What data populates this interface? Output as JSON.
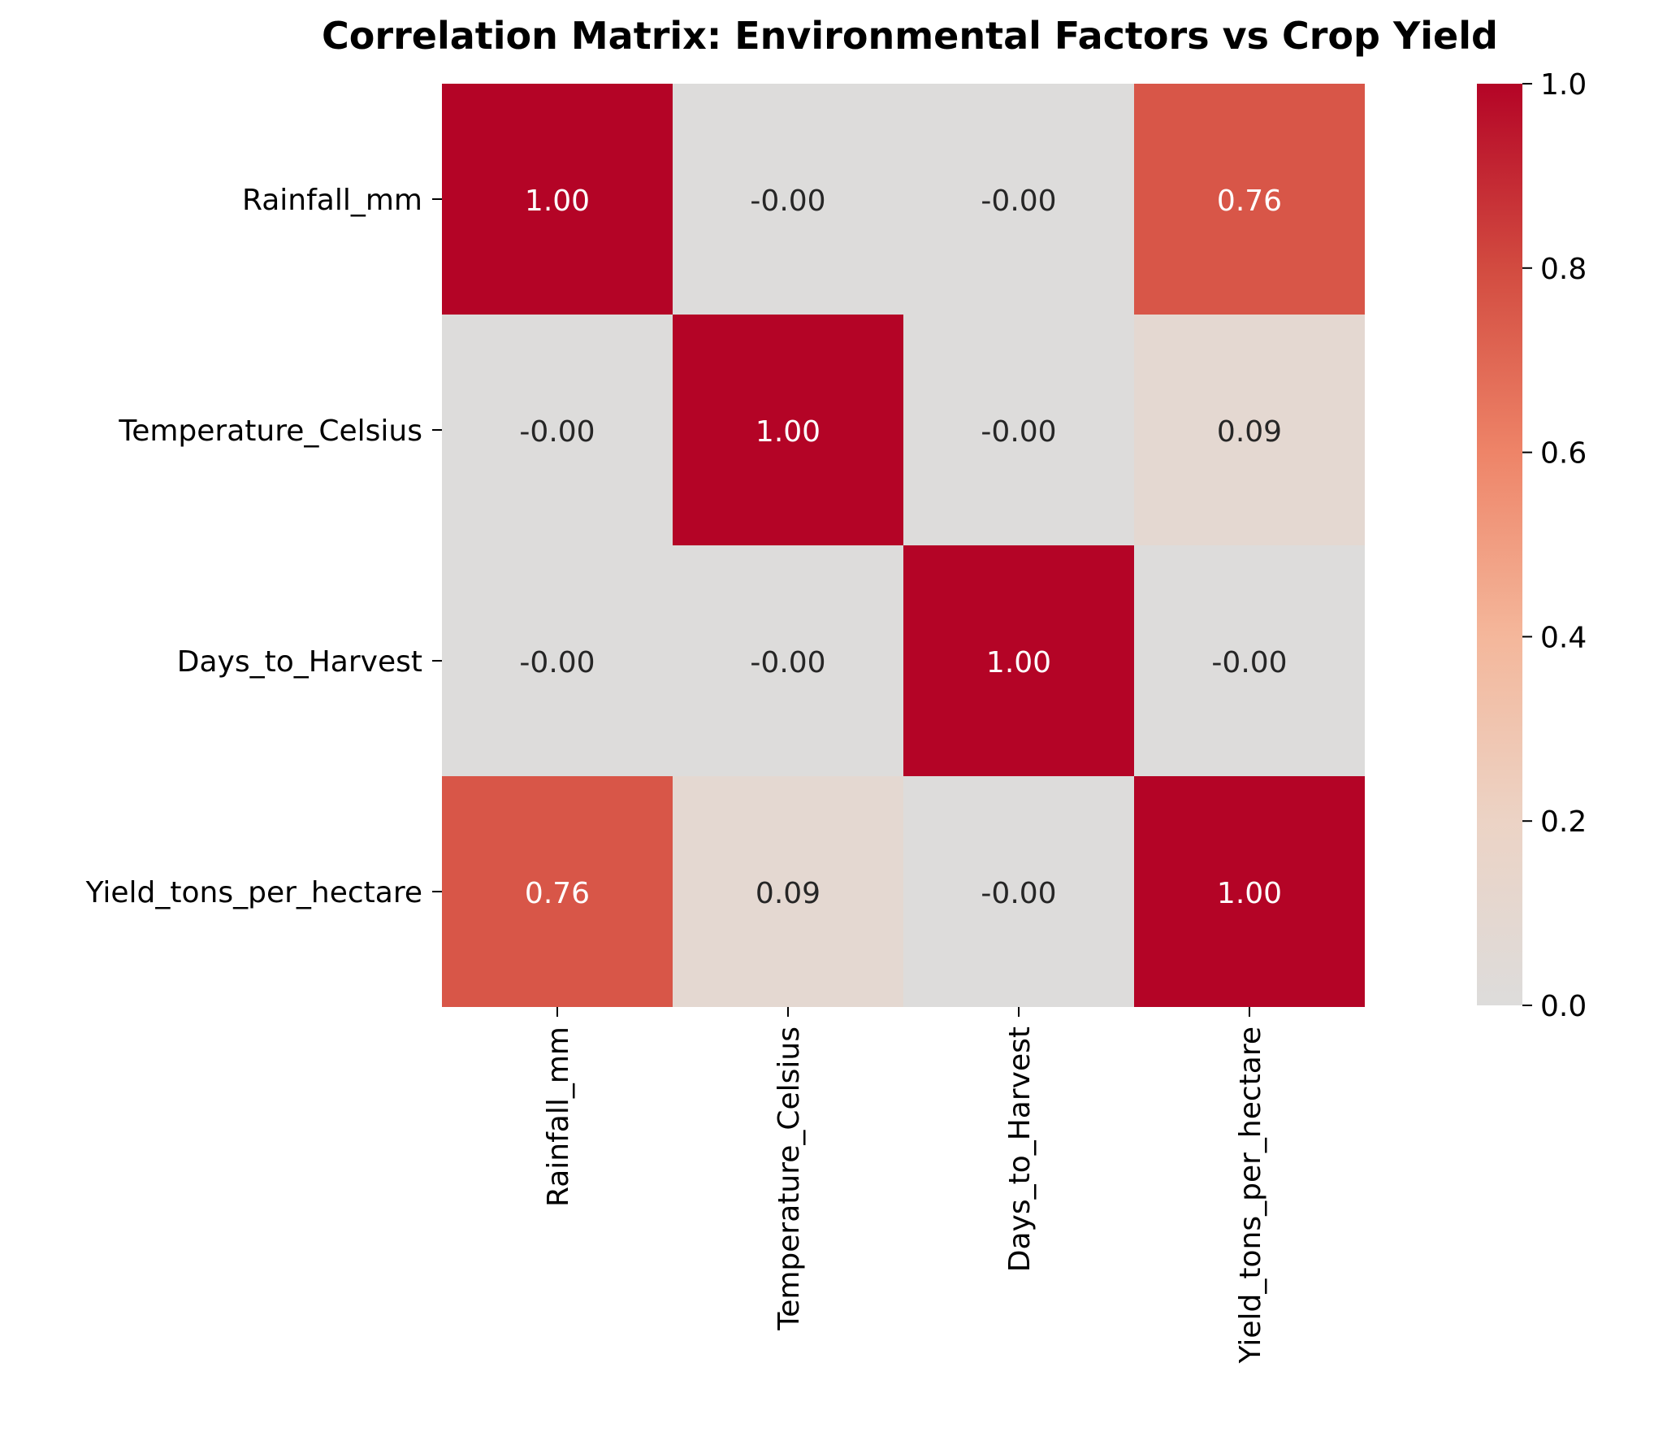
{
  "chart_data": {
    "type": "heatmap",
    "title": "Correlation Matrix: Environmental Factors vs Crop Yield",
    "row_labels": [
      "Rainfall_mm",
      "Temperature_Celsius",
      "Days_to_Harvest",
      "Yield_tons_per_hectare"
    ],
    "col_labels": [
      "Rainfall_mm",
      "Temperature_Celsius",
      "Days_to_Harvest",
      "Yield_tons_per_hectare"
    ],
    "values": [
      [
        1.0,
        -0.0,
        -0.0,
        0.76
      ],
      [
        -0.0,
        1.0,
        -0.0,
        0.09
      ],
      [
        -0.0,
        -0.0,
        1.0,
        -0.0
      ],
      [
        0.76,
        0.09,
        -0.0,
        1.0
      ]
    ],
    "cell_labels": [
      [
        "1.00",
        "-0.00",
        "-0.00",
        "0.76"
      ],
      [
        "-0.00",
        "1.00",
        "-0.00",
        "0.09"
      ],
      [
        "-0.00",
        "-0.00",
        "1.00",
        "-0.00"
      ],
      [
        "0.76",
        "0.09",
        "-0.00",
        "1.00"
      ]
    ],
    "colorbar": {
      "range": [
        0.0,
        1.0
      ],
      "ticks": [
        "0.0",
        "0.2",
        "0.4",
        "0.6",
        "0.8",
        "1.0"
      ]
    },
    "colors": {
      "zero": "#dddcdb",
      "high": "#b40426",
      "label_dark": "#262626",
      "label_light": "#ffffff"
    }
  }
}
